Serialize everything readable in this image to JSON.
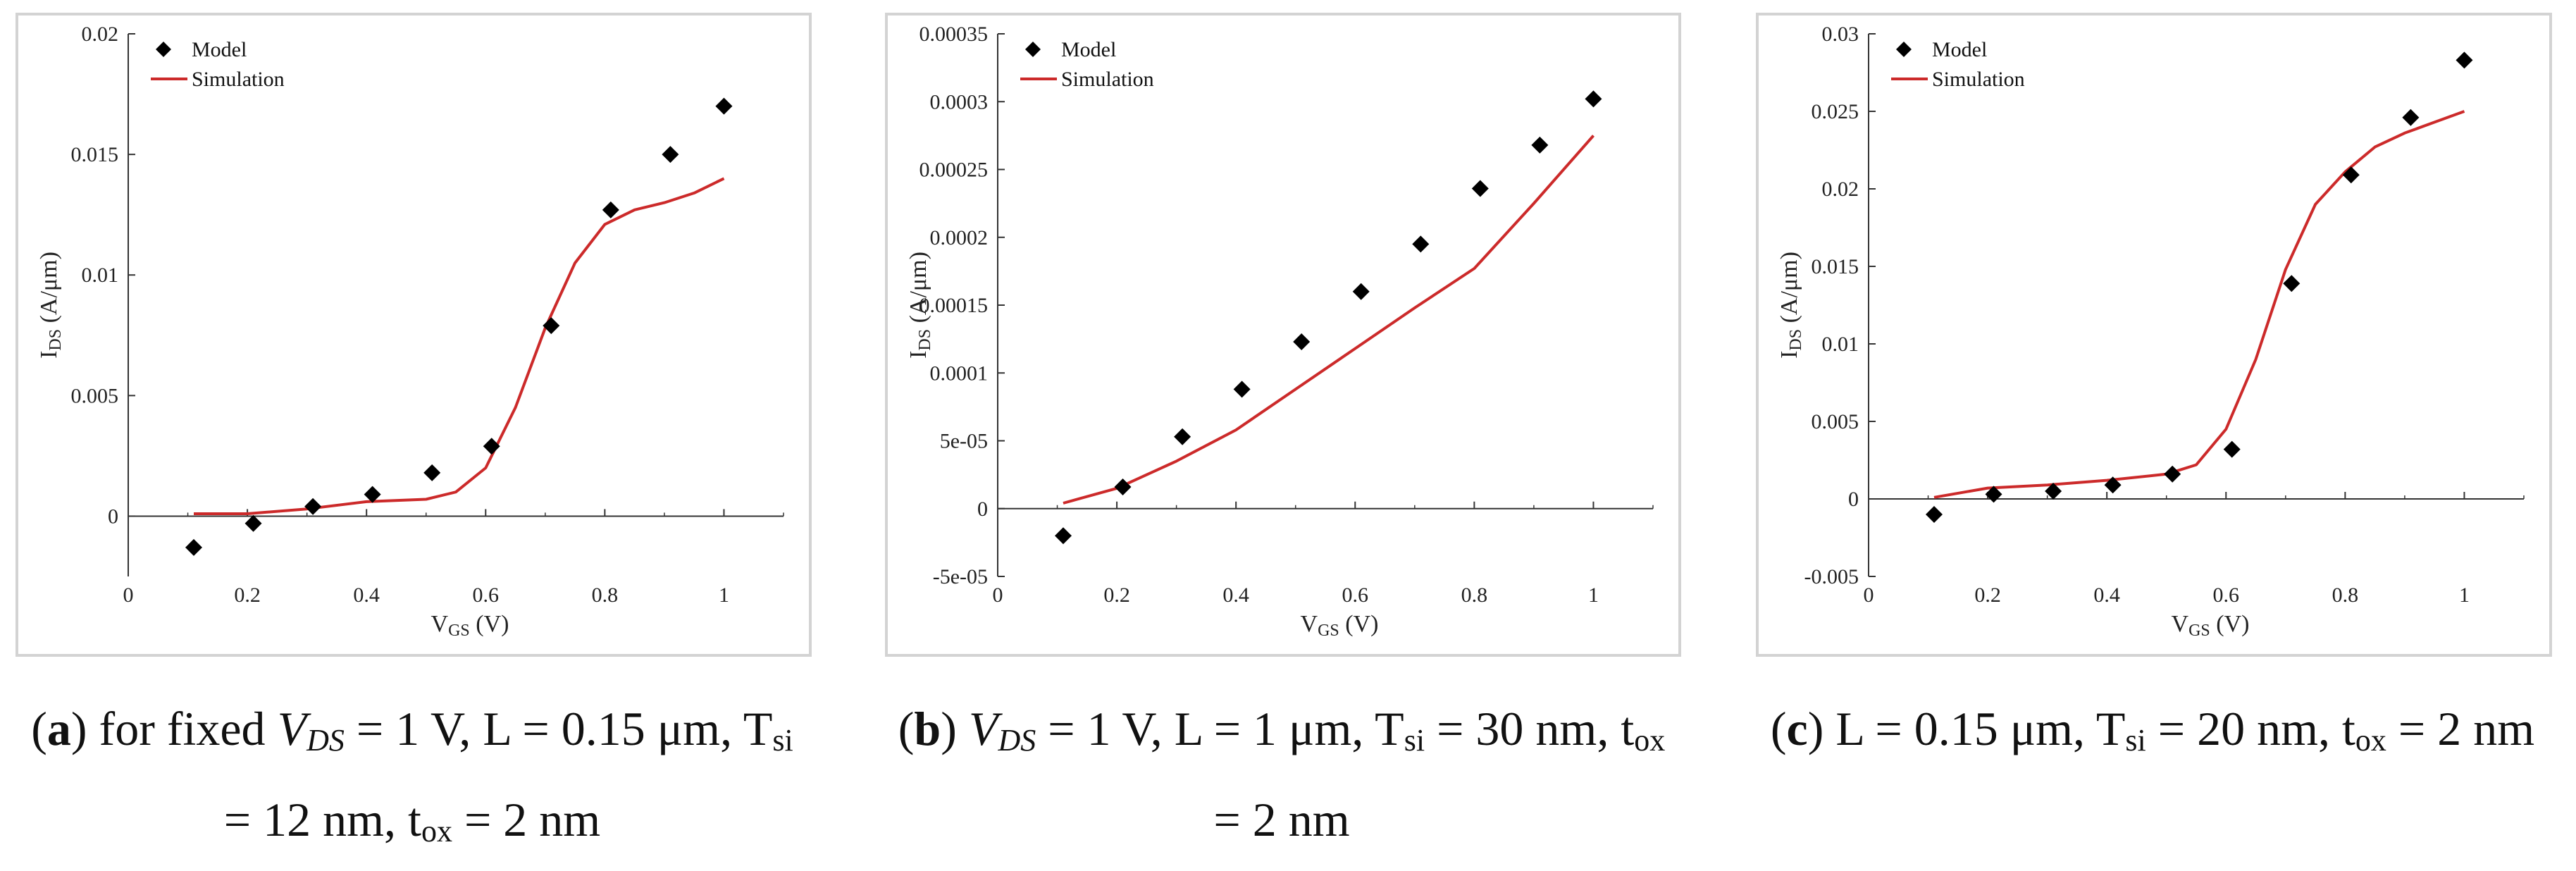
{
  "chart_data": [
    {
      "type": "scatter",
      "panel": "a",
      "xlabel_main": "V",
      "xlabel_sub": "GS",
      "xlabel_unit": " (V)",
      "ylabel_main": "I",
      "ylabel_sub": "DS",
      "ylabel_unit": " (A/μm)",
      "xlim": [
        0,
        1.1
      ],
      "ylim": [
        -0.0025,
        0.02
      ],
      "xticks": [
        0,
        0.2,
        0.4,
        0.6,
        0.8,
        1
      ],
      "xtick_labels": [
        "0",
        "0.2",
        "0.4",
        "0.6",
        "0.8",
        "1"
      ],
      "yticks": [
        0,
        0.005,
        0.01,
        0.015,
        0.02
      ],
      "ytick_labels": [
        "0",
        "0.005",
        "0.01",
        "0.015",
        "0.02"
      ],
      "legend": [
        "Model",
        "Simulation"
      ],
      "series": [
        {
          "name": "Model",
          "kind": "markers",
          "color": "#000000",
          "x": [
            0.11,
            0.21,
            0.31,
            0.41,
            0.51,
            0.61,
            0.71,
            0.81,
            0.91,
            1.0
          ],
          "y": [
            -0.0013,
            -0.0003,
            0.0004,
            0.0009,
            0.0018,
            0.0029,
            0.0079,
            0.0127,
            0.015,
            0.017
          ]
        },
        {
          "name": "Simulation",
          "kind": "line",
          "color": "#cc2a2a",
          "x": [
            0.11,
            0.2,
            0.3,
            0.4,
            0.5,
            0.55,
            0.6,
            0.65,
            0.7,
            0.75,
            0.8,
            0.85,
            0.9,
            0.95,
            1.0
          ],
          "y": [
            0.0001,
            0.0001,
            0.0003,
            0.0006,
            0.0007,
            0.001,
            0.002,
            0.0045,
            0.0078,
            0.0105,
            0.0121,
            0.0127,
            0.013,
            0.0134,
            0.014
          ]
        }
      ],
      "caption_parts": [
        {
          "t": "(",
          "s": "n"
        },
        {
          "t": "a",
          "s": "b"
        },
        {
          "t": ") for fixed ",
          "s": "n"
        },
        {
          "t": "V",
          "s": "i"
        },
        {
          "t": "DS",
          "s": "isub"
        },
        {
          "t": " = 1 V, L = 0.15 μm, T",
          "s": "n"
        },
        {
          "t": "si",
          "s": "sub"
        },
        {
          "t": " = 12 nm, t",
          "s": "n"
        },
        {
          "t": "ox",
          "s": "sub"
        },
        {
          "t": " = 2 nm",
          "s": "n"
        }
      ]
    },
    {
      "type": "scatter",
      "panel": "b",
      "xlabel_main": "V",
      "xlabel_sub": "GS",
      "xlabel_unit": " (V)",
      "ylabel_main": "I",
      "ylabel_sub": "DS",
      "ylabel_unit": " (A/μm)",
      "xlim": [
        0,
        1.1
      ],
      "ylim": [
        -5e-05,
        0.00035
      ],
      "xticks": [
        0,
        0.2,
        0.4,
        0.6,
        0.8,
        1
      ],
      "xtick_labels": [
        "0",
        "0.2",
        "0.4",
        "0.6",
        "0.8",
        "1"
      ],
      "yticks": [
        -5e-05,
        0,
        5e-05,
        0.0001,
        0.00015,
        0.0002,
        0.00025,
        0.0003,
        0.00035
      ],
      "ytick_labels": [
        "-5e-05",
        "0",
        "5e-05",
        "0.0001",
        "0.00015",
        "0.0002",
        "0.00025",
        "0.0003",
        "0.00035"
      ],
      "legend": [
        "Model",
        "Simulation"
      ],
      "series": [
        {
          "name": "Model",
          "kind": "markers",
          "color": "#000000",
          "x": [
            0.11,
            0.21,
            0.31,
            0.41,
            0.51,
            0.61,
            0.71,
            0.81,
            0.91,
            1.0
          ],
          "y": [
            -2e-05,
            1.6e-05,
            5.3e-05,
            8.8e-05,
            0.000123,
            0.00016,
            0.000195,
            0.000236,
            0.000268,
            0.000302
          ]
        },
        {
          "name": "Simulation",
          "kind": "line",
          "color": "#cc2a2a",
          "x": [
            0.11,
            0.2,
            0.3,
            0.4,
            0.5,
            0.6,
            0.7,
            0.8,
            0.9,
            1.0
          ],
          "y": [
            4e-06,
            1.5e-05,
            3.5e-05,
            5.8e-05,
            8.8e-05,
            0.000118,
            0.000148,
            0.000177,
            0.000225,
            0.000275
          ]
        }
      ],
      "caption_parts": [
        {
          "t": "(",
          "s": "n"
        },
        {
          "t": "b",
          "s": "b"
        },
        {
          "t": ") ",
          "s": "n"
        },
        {
          "t": "V",
          "s": "i"
        },
        {
          "t": "DS",
          "s": "isub"
        },
        {
          "t": " = 1 V, L = 1 μm, T",
          "s": "n"
        },
        {
          "t": "si",
          "s": "sub"
        },
        {
          "t": " = 30 nm, t",
          "s": "n"
        },
        {
          "t": "ox",
          "s": "sub"
        },
        {
          "t": " = 2 nm",
          "s": "n"
        }
      ]
    },
    {
      "type": "scatter",
      "panel": "c",
      "xlabel_main": "V",
      "xlabel_sub": "GS",
      "xlabel_unit": " (V)",
      "ylabel_main": "I",
      "ylabel_sub": "DS",
      "ylabel_unit": " (A/μm)",
      "xlim": [
        0,
        1.1
      ],
      "ylim": [
        -0.005,
        0.03
      ],
      "xticks": [
        0,
        0.2,
        0.4,
        0.6,
        0.8,
        1
      ],
      "xtick_labels": [
        "0",
        "0.2",
        "0.4",
        "0.6",
        "0.8",
        "1"
      ],
      "yticks": [
        -0.005,
        0,
        0.005,
        0.01,
        0.015,
        0.02,
        0.025,
        0.03
      ],
      "ytick_labels": [
        "-0.005",
        "0",
        "0.005",
        "0.01",
        "0.015",
        "0.02",
        "0.025",
        "0.03"
      ],
      "legend": [
        "Model",
        "Simulation"
      ],
      "series": [
        {
          "name": "Model",
          "kind": "markers",
          "color": "#000000",
          "x": [
            0.11,
            0.21,
            0.31,
            0.41,
            0.51,
            0.61,
            0.71,
            0.81,
            0.91,
            1.0
          ],
          "y": [
            -0.001,
            0.0003,
            0.0005,
            0.0009,
            0.0016,
            0.0032,
            0.0139,
            0.0209,
            0.0246,
            0.0283
          ]
        },
        {
          "name": "Simulation",
          "kind": "line",
          "color": "#cc2a2a",
          "x": [
            0.11,
            0.2,
            0.3,
            0.4,
            0.5,
            0.55,
            0.6,
            0.65,
            0.7,
            0.75,
            0.8,
            0.85,
            0.9,
            0.95,
            1.0
          ],
          "y": [
            0.0001,
            0.0007,
            0.0009,
            0.0012,
            0.0016,
            0.0022,
            0.0045,
            0.009,
            0.0148,
            0.019,
            0.0211,
            0.0227,
            0.0236,
            0.0243,
            0.025
          ]
        }
      ],
      "caption_parts": [
        {
          "t": "(",
          "s": "n"
        },
        {
          "t": "c",
          "s": "b"
        },
        {
          "t": ") L = 0.15 μm, T",
          "s": "n"
        },
        {
          "t": "si",
          "s": "sub"
        },
        {
          "t": " = 20 nm, t",
          "s": "n"
        },
        {
          "t": "ox",
          "s": "sub"
        },
        {
          "t": " = 2 nm",
          "s": "n"
        }
      ]
    }
  ]
}
